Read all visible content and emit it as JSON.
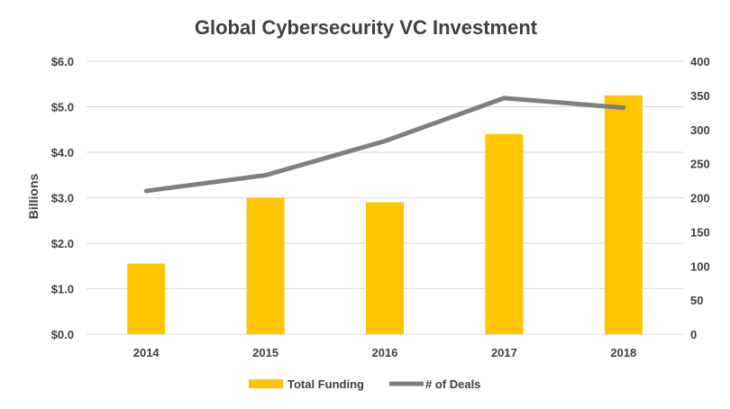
{
  "colors": {
    "bar": "#FFC600",
    "line": "#7F7F7F",
    "grid": "#D9D9D9",
    "text": "#404040"
  },
  "chart_data": {
    "type": "bar",
    "title": "Global Cybersecurity VC Investment",
    "xlabel": "",
    "ylabel": "Billions",
    "y2label": "",
    "categories": [
      "2014",
      "2015",
      "2016",
      "2017",
      "2018"
    ],
    "ylim": [
      0,
      6
    ],
    "y2lim": [
      0,
      400
    ],
    "yticks": [
      "$0.0",
      "$1.0",
      "$2.0",
      "$3.0",
      "$4.0",
      "$5.0",
      "$6.0"
    ],
    "y2ticks": [
      "0",
      "50",
      "100",
      "150",
      "200",
      "250",
      "300",
      "350",
      "400"
    ],
    "grid": true,
    "legend_position": "bottom",
    "series": [
      {
        "name": "Total Funding",
        "type": "bar",
        "axis": "left",
        "values": [
          1.55,
          3.0,
          2.9,
          4.4,
          5.25
        ]
      },
      {
        "name": "# of Deals",
        "type": "line",
        "axis": "right",
        "values": [
          210,
          233,
          283,
          346,
          332
        ]
      }
    ]
  }
}
